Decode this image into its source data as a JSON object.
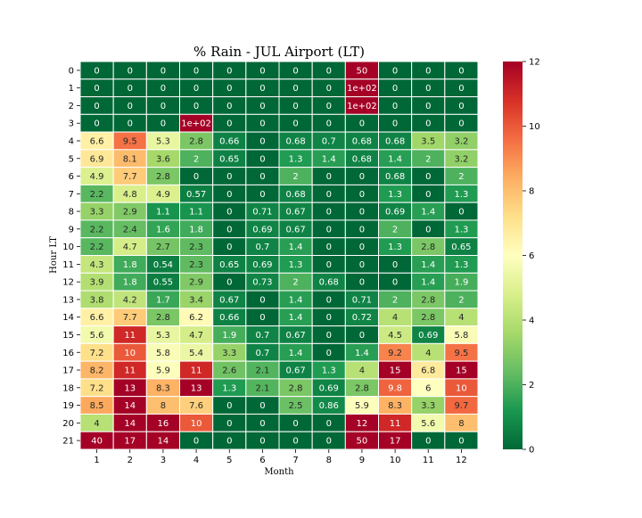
{
  "chart_data": {
    "type": "heatmap",
    "title": "% Rain - JUL Airport (LT)",
    "xlabel": "Month",
    "ylabel": "Hour LT",
    "x_categories": [
      "1",
      "2",
      "3",
      "4",
      "5",
      "6",
      "7",
      "8",
      "9",
      "10",
      "11",
      "12"
    ],
    "y_categories": [
      "0",
      "1",
      "2",
      "3",
      "4",
      "5",
      "6",
      "7",
      "8",
      "9",
      "10",
      "11",
      "12",
      "13",
      "14",
      "15",
      "16",
      "17",
      "18",
      "19",
      "20",
      "21"
    ],
    "colormap": "RdYlGn_r",
    "colorbar": {
      "min": 0,
      "max": 12,
      "ticks": [
        "0",
        "2",
        "4",
        "6",
        "8",
        "10",
        "12"
      ]
    },
    "grid_line_color": "#ffffff",
    "values": [
      [
        0,
        0,
        0,
        0,
        0,
        0,
        0,
        0,
        50,
        0,
        0,
        0
      ],
      [
        0,
        0,
        0,
        0,
        0,
        0,
        0,
        0,
        100,
        0,
        0,
        0
      ],
      [
        0,
        0,
        0,
        0,
        0,
        0,
        0,
        0,
        100,
        0,
        0,
        0
      ],
      [
        0,
        0,
        0,
        100,
        0,
        0,
        0,
        0,
        0,
        0,
        0,
        0
      ],
      [
        6.6,
        9.5,
        5.3,
        2.8,
        0.66,
        0,
        0.68,
        0.7,
        0.68,
        0.68,
        3.5,
        3.2
      ],
      [
        6.9,
        8.1,
        3.6,
        2,
        0.65,
        0,
        1.3,
        1.4,
        0.68,
        1.4,
        2,
        3.2
      ],
      [
        4.9,
        7.7,
        2.8,
        0,
        0,
        0,
        2,
        0,
        0,
        0.68,
        0,
        2
      ],
      [
        2.2,
        4.8,
        4.9,
        0.57,
        0,
        0,
        0.68,
        0,
        0,
        1.3,
        0,
        1.3
      ],
      [
        3.3,
        2.9,
        1.1,
        1.1,
        0,
        0.71,
        0.67,
        0,
        0,
        0.69,
        1.4,
        0
      ],
      [
        2.2,
        2.4,
        1.6,
        1.8,
        0,
        0.69,
        0.67,
        0,
        0,
        2,
        0,
        1.3
      ],
      [
        2.2,
        4.7,
        2.7,
        2.3,
        0,
        0.7,
        1.4,
        0,
        0,
        1.3,
        2.8,
        0.65
      ],
      [
        4.3,
        1.8,
        0.54,
        2.3,
        0.65,
        0.69,
        1.3,
        0,
        0,
        0,
        1.4,
        1.3
      ],
      [
        3.9,
        1.8,
        0.55,
        2.9,
        0,
        0.73,
        2,
        0.68,
        0,
        0,
        1.4,
        1.9
      ],
      [
        3.8,
        4.2,
        1.7,
        3.4,
        0.67,
        0,
        1.4,
        0,
        0.71,
        2,
        2.8,
        2
      ],
      [
        6.6,
        7.7,
        2.8,
        6.2,
        0.66,
        0,
        1.4,
        0,
        0.72,
        4,
        2.8,
        4
      ],
      [
        5.6,
        11,
        5.3,
        4.7,
        1.9,
        0.7,
        0.67,
        0,
        0,
        4.5,
        0.69,
        5.8
      ],
      [
        7.2,
        10,
        5.8,
        5.4,
        3.3,
        0.7,
        1.4,
        0,
        1.4,
        9.2,
        4,
        9.5
      ],
      [
        8.2,
        11,
        5.9,
        11,
        2.6,
        2.1,
        0.67,
        1.3,
        4,
        15,
        6.8,
        15
      ],
      [
        7.2,
        13,
        8.3,
        13,
        1.3,
        2.1,
        2.8,
        0.69,
        2.8,
        9.8,
        6,
        10
      ],
      [
        8.5,
        14,
        8,
        7.6,
        0,
        0,
        2.5,
        0.86,
        5.9,
        8.3,
        3.3,
        9.7
      ],
      [
        4,
        14,
        16,
        10,
        0,
        0,
        0,
        0,
        12,
        11,
        5.6,
        8
      ],
      [
        40,
        17,
        14,
        0,
        0,
        0,
        0,
        0,
        50,
        17,
        0,
        0
      ]
    ],
    "annotations": [
      [
        "0",
        "0",
        "0",
        "0",
        "0",
        "0",
        "0",
        "0",
        "50",
        "0",
        "0",
        "0"
      ],
      [
        "0",
        "0",
        "0",
        "0",
        "0",
        "0",
        "0",
        "0",
        "1e+02",
        "0",
        "0",
        "0"
      ],
      [
        "0",
        "0",
        "0",
        "0",
        "0",
        "0",
        "0",
        "0",
        "1e+02",
        "0",
        "0",
        "0"
      ],
      [
        "0",
        "0",
        "0",
        "1e+02",
        "0",
        "0",
        "0",
        "0",
        "0",
        "0",
        "0",
        "0"
      ],
      [
        "6.6",
        "9.5",
        "5.3",
        "2.8",
        "0.66",
        "0",
        "0.68",
        "0.7",
        "0.68",
        "0.68",
        "3.5",
        "3.2"
      ],
      [
        "6.9",
        "8.1",
        "3.6",
        "2",
        "0.65",
        "0",
        "1.3",
        "1.4",
        "0.68",
        "1.4",
        "2",
        "3.2"
      ],
      [
        "4.9",
        "7.7",
        "2.8",
        "0",
        "0",
        "0",
        "2",
        "0",
        "0",
        "0.68",
        "0",
        "2"
      ],
      [
        "2.2",
        "4.8",
        "4.9",
        "0.57",
        "0",
        "0",
        "0.68",
        "0",
        "0",
        "1.3",
        "0",
        "1.3"
      ],
      [
        "3.3",
        "2.9",
        "1.1",
        "1.1",
        "0",
        "0.71",
        "0.67",
        "0",
        "0",
        "0.69",
        "1.4",
        "0"
      ],
      [
        "2.2",
        "2.4",
        "1.6",
        "1.8",
        "0",
        "0.69",
        "0.67",
        "0",
        "0",
        "2",
        "0",
        "1.3"
      ],
      [
        "2.2",
        "4.7",
        "2.7",
        "2.3",
        "0",
        "0.7",
        "1.4",
        "0",
        "0",
        "1.3",
        "2.8",
        "0.65"
      ],
      [
        "4.3",
        "1.8",
        "0.54",
        "2.3",
        "0.65",
        "0.69",
        "1.3",
        "0",
        "0",
        "0",
        "1.4",
        "1.3"
      ],
      [
        "3.9",
        "1.8",
        "0.55",
        "2.9",
        "0",
        "0.73",
        "2",
        "0.68",
        "0",
        "0",
        "1.4",
        "1.9"
      ],
      [
        "3.8",
        "4.2",
        "1.7",
        "3.4",
        "0.67",
        "0",
        "1.4",
        "0",
        "0.71",
        "2",
        "2.8",
        "2"
      ],
      [
        "6.6",
        "7.7",
        "2.8",
        "6.2",
        "0.66",
        "0",
        "1.4",
        "0",
        "0.72",
        "4",
        "2.8",
        "4"
      ],
      [
        "5.6",
        "11",
        "5.3",
        "4.7",
        "1.9",
        "0.7",
        "0.67",
        "0",
        "0",
        "4.5",
        "0.69",
        "5.8"
      ],
      [
        "7.2",
        "10",
        "5.8",
        "5.4",
        "3.3",
        "0.7",
        "1.4",
        "0",
        "1.4",
        "9.2",
        "4",
        "9.5"
      ],
      [
        "8.2",
        "11",
        "5.9",
        "11",
        "2.6",
        "2.1",
        "0.67",
        "1.3",
        "4",
        "15",
        "6.8",
        "15"
      ],
      [
        "7.2",
        "13",
        "8.3",
        "13",
        "1.3",
        "2.1",
        "2.8",
        "0.69",
        "2.8",
        "9.8",
        "6",
        "10"
      ],
      [
        "8.5",
        "14",
        "8",
        "7.6",
        "0",
        "0",
        "2.5",
        "0.86",
        "5.9",
        "8.3",
        "3.3",
        "9.7"
      ],
      [
        "4",
        "14",
        "16",
        "10",
        "0",
        "0",
        "0",
        "0",
        "12",
        "11",
        "5.6",
        "8"
      ],
      [
        "40",
        "17",
        "14",
        "0",
        "0",
        "0",
        "0",
        "0",
        "50",
        "17",
        "0",
        "0"
      ]
    ]
  }
}
